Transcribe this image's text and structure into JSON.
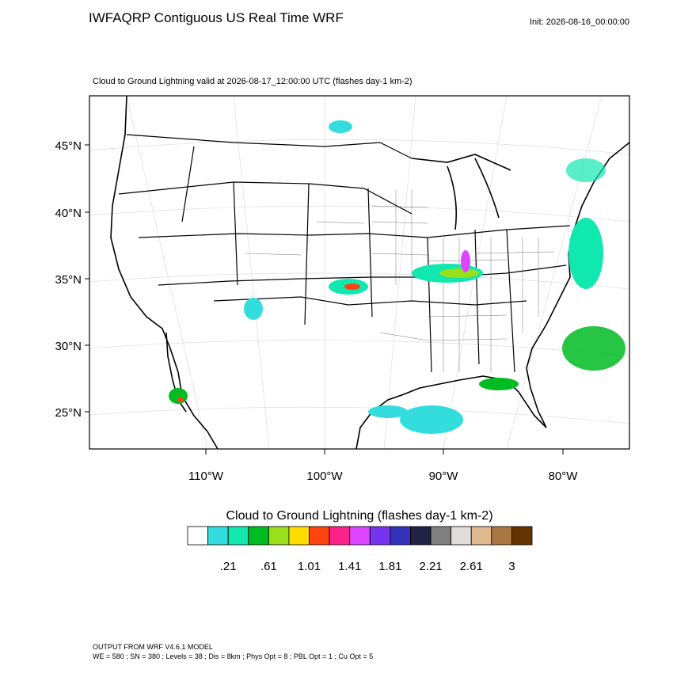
{
  "header": {
    "title": "IWFAQRP Contiguous US Real Time WRF",
    "init": "Init: 2026-08-16_00:00:00"
  },
  "map": {
    "subtitle": "Cloud to Ground Lightning valid at 2026-08-17_12:00:00 UTC   (flashes day-1 km-2)",
    "lat_labels": [
      "45°N",
      "40°N",
      "35°N",
      "30°N",
      "25°N"
    ],
    "lon_labels": [
      "110°W",
      "100°W",
      "90°W",
      "80°W"
    ]
  },
  "colorbar": {
    "title": "Cloud to Ground Lightning  (flashes day-1 km-2)",
    "colors": [
      "#ffffff",
      "#33dddd",
      "#11e8b0",
      "#00bb22",
      "#99e01a",
      "#ffdd00",
      "#ff4411",
      "#ff2288",
      "#dd44ff",
      "#7733ee",
      "#3333bb",
      "#222244",
      "#808080",
      "#e0ddd8",
      "#e0b890",
      "#aa7744",
      "#663300"
    ],
    "labels": [
      ".21",
      ".61",
      "1.01",
      "1.41",
      "1.81",
      "2.21",
      "2.61",
      "3"
    ]
  },
  "footer": {
    "line1": "OUTPUT FROM WRF V4.6.1 MODEL",
    "line2": "WE = 580 ; SN = 380 ; Levels = 38 ; Dis = 8km ; Phys Opt = 8 ; PBL Opt = 1 ; Cu Opt = 5"
  }
}
